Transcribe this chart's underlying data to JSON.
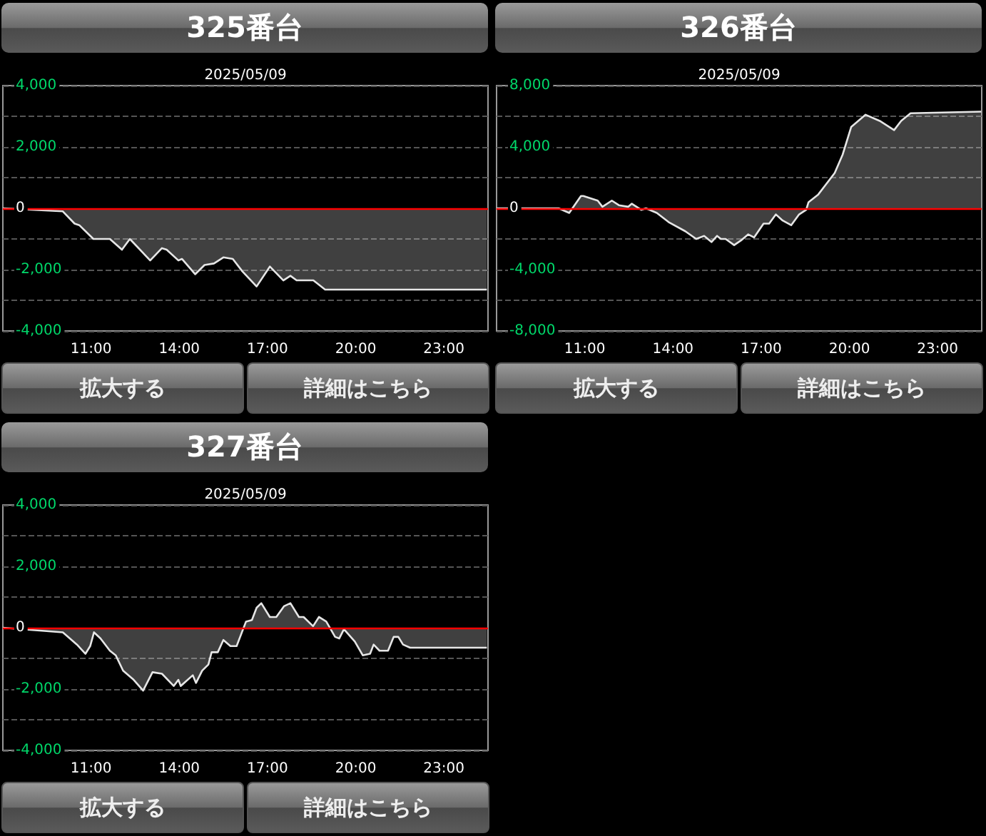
{
  "chart_data": [
    {
      "type": "area",
      "title": "325番台",
      "subtitle": "2025/05/09",
      "annotations": [
        "拡大する",
        "詳細はこちら"
      ],
      "x": [
        8.0,
        10.04,
        10.44,
        10.6,
        11.08,
        11.64,
        12.05,
        12.32,
        13.01,
        13.41,
        13.57,
        13.97,
        14.09,
        14.54,
        14.86,
        15.18,
        15.5,
        15.82,
        16.14,
        16.63,
        17.08,
        17.54,
        17.78,
        17.99,
        18.56,
        18.96,
        24.46
      ],
      "series": [
        {
          "color": "#e6e6e6",
          "values": [
            0,
            -100,
            -500,
            -550,
            -1000,
            -1000,
            -1350,
            -1000,
            -1700,
            -1300,
            -1350,
            -1700,
            -1650,
            -2150,
            -1850,
            -1800,
            -1600,
            -1650,
            -2050,
            -2550,
            -1900,
            -2350,
            -2200,
            -2350,
            -2350,
            -2650,
            -2650
          ]
        }
      ],
      "xlim": [
        8,
        24.5
      ],
      "xticks": [
        {
          "value": 11,
          "label": "11:00"
        },
        {
          "value": 14,
          "label": "14:00"
        },
        {
          "value": 17,
          "label": "17:00"
        },
        {
          "value": 20,
          "label": "20:00"
        },
        {
          "value": 23,
          "label": "23:00"
        }
      ],
      "ylim": [
        -4000,
        4000
      ],
      "yticks": [
        {
          "value": -4000,
          "label": "-4,000"
        },
        {
          "value": -3000,
          "label": null
        },
        {
          "value": -2000,
          "label": "-2,000"
        },
        {
          "value": -1000,
          "label": null
        },
        {
          "value": 0,
          "label": "0"
        },
        {
          "value": 1000,
          "label": null
        },
        {
          "value": 2000,
          "label": "2,000"
        },
        {
          "value": 3000,
          "label": null
        },
        {
          "value": 4000,
          "label": "4,000"
        }
      ],
      "ref_lines": [
        {
          "axis": "y",
          "value": 0,
          "color": "#ff0000"
        }
      ],
      "grid": "y",
      "marker": "none"
    },
    {
      "type": "area",
      "title": "326番台",
      "subtitle": "2025/05/09",
      "annotations": [
        "拡大する",
        "詳細はこちら"
      ],
      "x": [
        8.0,
        10.11,
        10.47,
        10.87,
        10.95,
        11.44,
        11.6,
        11.92,
        12.16,
        12.48,
        12.6,
        12.92,
        13.08,
        13.45,
        13.85,
        14.42,
        14.79,
        15.06,
        15.31,
        15.5,
        15.63,
        15.79,
        16.08,
        16.31,
        16.56,
        16.76,
        17.08,
        17.27,
        17.5,
        17.73,
        18.02,
        18.29,
        18.53,
        18.61,
        18.94,
        19.18,
        19.5,
        19.77,
        20.06,
        20.55,
        21.03,
        21.52,
        21.76,
        22.08,
        24.48
      ],
      "series": [
        {
          "color": "#e6e6e6",
          "values": [
            0,
            0,
            -300,
            800,
            800,
            500,
            100,
            500,
            200,
            100,
            300,
            -100,
            0,
            -300,
            -900,
            -1500,
            -2000,
            -1800,
            -2200,
            -1800,
            -2000,
            -2000,
            -2400,
            -2100,
            -1700,
            -1900,
            -1000,
            -1000,
            -400,
            -800,
            -1100,
            -400,
            -100,
            400,
            900,
            1500,
            2300,
            3500,
            5300,
            6100,
            5700,
            5100,
            5700,
            6200,
            6300
          ]
        }
      ],
      "xlim": [
        8,
        24.5
      ],
      "xticks": [
        {
          "value": 11,
          "label": "11:00"
        },
        {
          "value": 14,
          "label": "14:00"
        },
        {
          "value": 17,
          "label": "17:00"
        },
        {
          "value": 20,
          "label": "20:00"
        },
        {
          "value": 23,
          "label": "23:00"
        }
      ],
      "ylim": [
        -8000,
        8000
      ],
      "yticks": [
        {
          "value": -8000,
          "label": "-8,000"
        },
        {
          "value": -6000,
          "label": null
        },
        {
          "value": -4000,
          "label": "-4,000"
        },
        {
          "value": -2000,
          "label": null
        },
        {
          "value": 0,
          "label": "0"
        },
        {
          "value": 2000,
          "label": null
        },
        {
          "value": 4000,
          "label": "4,000"
        },
        {
          "value": 6000,
          "label": null
        },
        {
          "value": 8000,
          "label": "8,000"
        }
      ],
      "ref_lines": [
        {
          "axis": "y",
          "value": 0,
          "color": "#ff0000"
        }
      ],
      "grid": "y",
      "marker": "none"
    },
    {
      "type": "area",
      "title": "327番台",
      "subtitle": "2025/05/09",
      "annotations": [
        "拡大する",
        "詳細はこちら"
      ],
      "x": [
        8.0,
        10.04,
        10.52,
        10.81,
        10.97,
        11.1,
        11.32,
        11.64,
        11.84,
        12.09,
        12.45,
        12.77,
        13.09,
        13.41,
        13.81,
        13.97,
        14.05,
        14.46,
        14.57,
        14.78,
        14.99,
        15.1,
        15.31,
        15.5,
        15.74,
        15.95,
        16.27,
        16.47,
        16.63,
        16.79,
        17.08,
        17.3,
        17.56,
        17.78,
        18.07,
        18.23,
        18.55,
        18.75,
        19.0,
        19.3,
        19.44,
        19.6,
        19.97,
        20.24,
        20.49,
        20.61,
        20.81,
        21.1,
        21.29,
        21.45,
        21.61,
        21.85,
        24.46
      ],
      "series": [
        {
          "color": "#e6e6e6",
          "values": [
            0,
            -150,
            -550,
            -850,
            -600,
            -150,
            -350,
            -750,
            -900,
            -1400,
            -1700,
            -2050,
            -1450,
            -1500,
            -1900,
            -1700,
            -1900,
            -1550,
            -1800,
            -1400,
            -1200,
            -800,
            -800,
            -400,
            -600,
            -600,
            200,
            250,
            650,
            800,
            350,
            350,
            700,
            800,
            350,
            350,
            50,
            350,
            200,
            -300,
            -350,
            -50,
            -450,
            -900,
            -850,
            -550,
            -750,
            -750,
            -300,
            -300,
            -550,
            -650,
            -650
          ]
        }
      ],
      "xlim": [
        8,
        24.5
      ],
      "xticks": [
        {
          "value": 11,
          "label": "11:00"
        },
        {
          "value": 14,
          "label": "14:00"
        },
        {
          "value": 17,
          "label": "17:00"
        },
        {
          "value": 20,
          "label": "20:00"
        },
        {
          "value": 23,
          "label": "23:00"
        }
      ],
      "ylim": [
        -4000,
        4000
      ],
      "yticks": [
        {
          "value": -4000,
          "label": "-4,000"
        },
        {
          "value": -3000,
          "label": null
        },
        {
          "value": -2000,
          "label": "-2,000"
        },
        {
          "value": -1000,
          "label": null
        },
        {
          "value": 0,
          "label": "0"
        },
        {
          "value": 1000,
          "label": null
        },
        {
          "value": 2000,
          "label": "2,000"
        },
        {
          "value": 3000,
          "label": null
        },
        {
          "value": 4000,
          "label": "4,000"
        }
      ],
      "ref_lines": [
        {
          "axis": "y",
          "value": 0,
          "color": "#ff0000"
        }
      ],
      "grid": "y",
      "marker": "none"
    }
  ]
}
